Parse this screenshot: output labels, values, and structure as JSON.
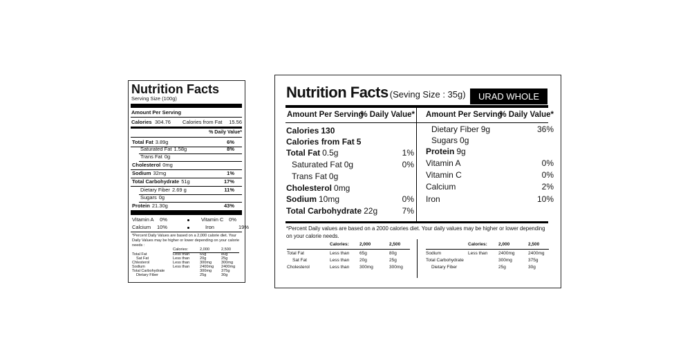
{
  "left_label": {
    "title": "Nutrition Facts",
    "serving": "Serving Size (100g)",
    "amount_per_serving": "Amount Per Serving",
    "calories_label": "Calories",
    "calories_value": "304.76",
    "fat_calories_label": "Calories from Fat",
    "fat_calories_value": "15.56",
    "dv_header": "% Daily Value*",
    "rows": [
      {
        "label": "Total Fat",
        "amount": "3.89g",
        "dv": "6%"
      },
      {
        "label": "Saturated Fat",
        "amount": "1.58g",
        "dv": "8%"
      },
      {
        "label": "Trans Fat",
        "amount": "0g"
      },
      {
        "label": "Cholesterol",
        "amount": "0mg"
      },
      {
        "label": "Sodium",
        "amount": "32mg",
        "dv": "1%"
      },
      {
        "label": "Total Carbohydrate",
        "amount": "51g",
        "dv": "17%"
      },
      {
        "label": "Dietary Fiber",
        "amount": "2.69 g",
        "dv": "11%"
      },
      {
        "label": "Sugars",
        "amount": "0g"
      },
      {
        "label": "Protein",
        "amount": "21.30g",
        "dv": "43%"
      }
    ],
    "vitamins": [
      {
        "name": "Vitamin A",
        "value": "0%"
      },
      {
        "name": "Vitamin C",
        "value": "0%"
      },
      {
        "name": "Calcium",
        "value": "10%"
      },
      {
        "name": "Iron",
        "value": "19%"
      }
    ],
    "footnote": "*Percent Daily Values are based on a 2,000 calorie diet. Your Daily Values may be higher or lower depending on your calorie needs :",
    "table": {
      "header": [
        "Calories:",
        "2,000",
        "2,500"
      ],
      "rows": [
        [
          "Total Fat",
          "Less than",
          "65g",
          "80g"
        ],
        [
          "Sat Fat",
          "Less than",
          "20g",
          "25g"
        ],
        [
          "Chlesterol",
          "Less than",
          "300mg",
          "300mg"
        ],
        [
          "Sodium",
          "Less than",
          "2400mg",
          "2400mg"
        ],
        [
          "Total Carbohydrate",
          "300mg",
          "375g"
        ],
        [
          "Dietary Fiber",
          "25g",
          "30g"
        ]
      ]
    }
  },
  "right_label": {
    "title": "Nutrition Facts",
    "serving": "(Seving Size : 35g)",
    "product": "URAD WHOLE",
    "left_column": {
      "header": [
        "Amount Per Serving",
        "% Daily Value*"
      ],
      "rows": [
        {
          "label": "Calories",
          "amount": "130"
        },
        {
          "label": "Calories from Fat",
          "amount": "5"
        },
        {
          "label": "Total Fat",
          "amount": "0.5g",
          "dv": "1%"
        },
        {
          "label": "Saturated Fat",
          "amount": "0g",
          "dv": "0%"
        },
        {
          "label": "Trans Fat",
          "amount": " 0g"
        },
        {
          "label": "Cholesterol",
          "amount": "0mg"
        },
        {
          "label": "Sodium",
          "amount": "10mg",
          "dv": "0%"
        },
        {
          "label": "Total Carbohydrate",
          "amount": "22g",
          "dv": "7%"
        }
      ]
    },
    "right_column": {
      "header": [
        "Amount Per Serving",
        "% Daily Value*"
      ],
      "rows": [
        {
          "label": "Dietary Fiber",
          "amount": "9g",
          "dv": "36%"
        },
        {
          "label": "Sugars",
          "amount": "0g"
        },
        {
          "label": "Protein",
          "amount": "9g"
        },
        {
          "label": "Vitamin A",
          "dv": "0%"
        },
        {
          "label": "Vitamin C",
          "dv": "0%"
        },
        {
          "label": "Calcium",
          "dv": "2%"
        },
        {
          "label": "Iron",
          "dv": "10%"
        }
      ]
    },
    "footnote": "*Percent Daily values are based on a 2000 calories diet. Your daily values may be higher or lower depending on your calorie needs.",
    "table_left": {
      "header": [
        "Calories:",
        "2,000",
        "2,500"
      ],
      "rows": [
        [
          "Total Fat",
          "Less than",
          "65g",
          "80g"
        ],
        [
          "Sat Fat",
          "Less than",
          "20g",
          "25g"
        ],
        [
          "Cholesterol",
          "Less than",
          "300mg",
          "300mg"
        ]
      ]
    },
    "table_right": {
      "header": [
        "Calories:",
        "2,000",
        "2,500"
      ],
      "rows": [
        [
          "Sodium",
          "Less than",
          "2400mg",
          "2400mg"
        ],
        [
          "Total Carbohydrate",
          "300mg",
          "375g"
        ],
        [
          "Dietary Fiber",
          "25g",
          "30g"
        ]
      ]
    }
  }
}
